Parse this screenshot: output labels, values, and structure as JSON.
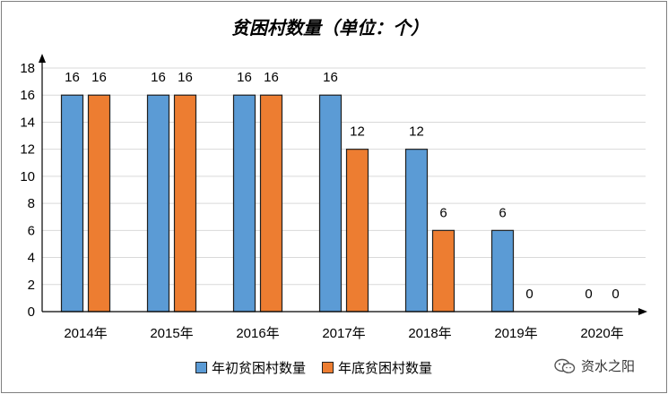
{
  "chart_data": {
    "type": "bar",
    "title": "贫困村数量（单位：个）",
    "categories": [
      "2014年",
      "2015年",
      "2016年",
      "2017年",
      "2018年",
      "2019年",
      "2020年"
    ],
    "series": [
      {
        "name": "年初贫困村数量",
        "values": [
          16,
          16,
          16,
          16,
          12,
          6,
          0
        ],
        "color": "#5b9bd5"
      },
      {
        "name": "年底贫困村数量",
        "values": [
          16,
          16,
          16,
          12,
          6,
          0,
          0
        ],
        "color": "#ed7d31"
      }
    ],
    "ylim": [
      0,
      18
    ],
    "yticks": [
      0,
      2,
      4,
      6,
      8,
      10,
      12,
      14,
      16,
      18
    ],
    "data_labels": true,
    "grid": "horizontal",
    "legend_position": "bottom"
  },
  "watermark": {
    "text": "资水之阳",
    "icon": "wechat-icon"
  }
}
